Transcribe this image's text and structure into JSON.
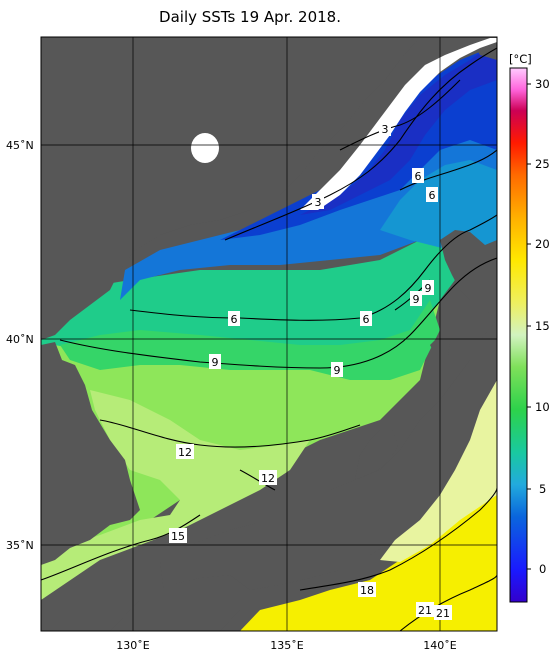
{
  "title": "Daily SSTs 19 Apr. 2018.",
  "colorbar": {
    "unit": "[°C]",
    "ticks": [
      "30",
      "25",
      "20",
      "15",
      "10",
      "5",
      "0"
    ]
  },
  "axes": {
    "lat_labels": [
      "45˚N",
      "40˚N",
      "35˚N"
    ],
    "lon_labels": [
      "130˚E",
      "135˚E",
      "140˚E"
    ]
  },
  "contour_labels": [
    "3",
    "3",
    "6",
    "6",
    "6",
    "6",
    "9",
    "9",
    "9",
    "9",
    "12",
    "12",
    "15",
    "18",
    "21",
    "21"
  ],
  "colors": {
    "land": "#575757",
    "no_data": "#ffffff",
    "contour": "#000000"
  }
}
